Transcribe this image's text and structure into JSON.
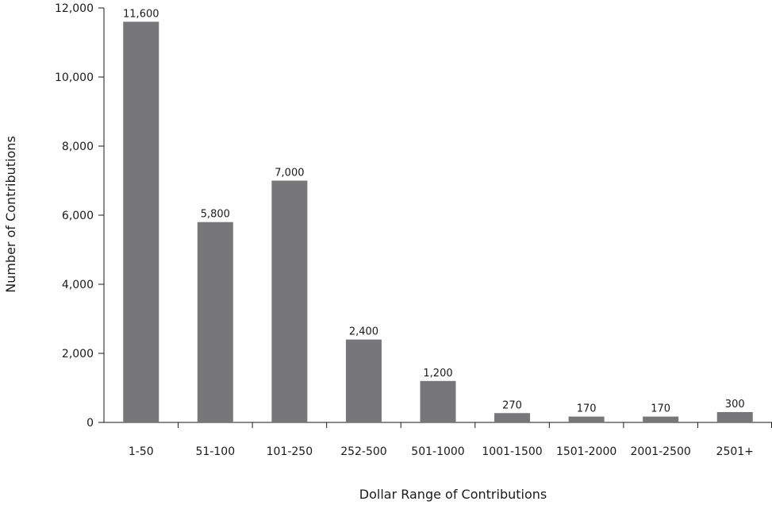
{
  "chart_data": {
    "type": "bar",
    "title": "",
    "xlabel": "Dollar Range of Contributions",
    "ylabel": "Number of Contributions",
    "categories": [
      "1-50",
      "51-100",
      "101-250",
      "252-500",
      "501-1000",
      "1001-1500",
      "1501-2000",
      "2001-2500",
      "2501+"
    ],
    "values": [
      11600,
      5800,
      7000,
      2400,
      1200,
      270,
      170,
      170,
      300
    ],
    "value_labels": [
      "11,600",
      "5,800",
      "7,000",
      "2,400",
      "1,200",
      "270",
      "170",
      "170",
      "300"
    ],
    "ylim": [
      0,
      12000
    ],
    "yticks": [
      0,
      2000,
      4000,
      6000,
      8000,
      10000,
      12000
    ],
    "ytick_labels": [
      "0",
      "2,000",
      "4,000",
      "6,000",
      "8,000",
      "10,000",
      "12,000"
    ],
    "bar_color": "#77777a",
    "grid": false,
    "legend": "none"
  }
}
